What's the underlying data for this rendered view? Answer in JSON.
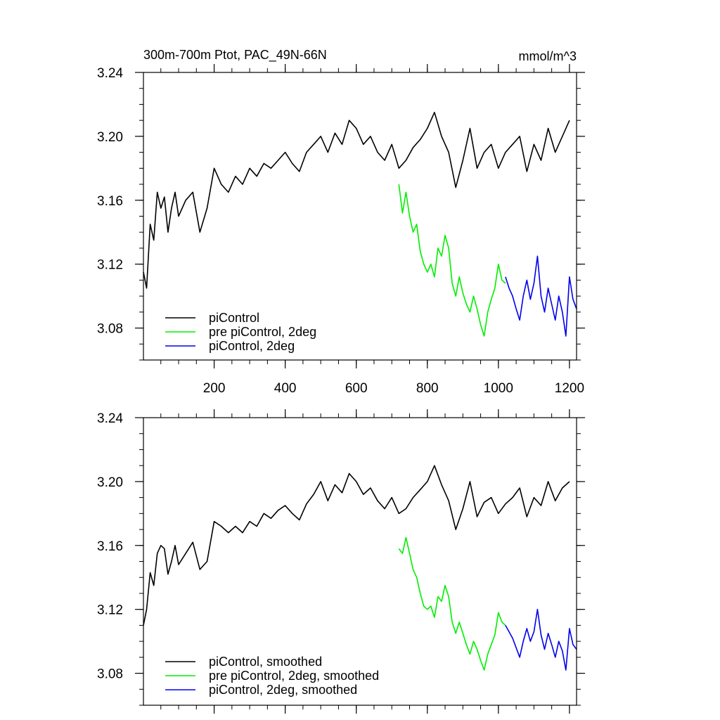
{
  "chart_data": [
    {
      "type": "line",
      "title": "300m-700m Ptot, PAC_49N-66N",
      "units_label": "mmol/m^3",
      "xlabel": "",
      "ylabel": "",
      "xlim": [
        1,
        1220
      ],
      "ylim": [
        3.06,
        3.24
      ],
      "xticks": [
        200,
        400,
        600,
        800,
        1000,
        1200
      ],
      "xtick_labels": [
        "200",
        "400",
        "600",
        "800",
        "1000",
        "1200"
      ],
      "yticks": [
        3.08,
        3.12,
        3.16,
        3.2,
        3.24
      ],
      "ytick_labels": [
        "3.08",
        "3.12",
        "3.16",
        "3.20",
        "3.24"
      ],
      "legend_position": "bottom-left",
      "grid": false,
      "series": [
        {
          "name": "piControl",
          "color": "#000000",
          "x": [
            1,
            10,
            20,
            30,
            40,
            50,
            60,
            70,
            80,
            90,
            100,
            120,
            140,
            160,
            180,
            200,
            220,
            240,
            260,
            280,
            300,
            320,
            340,
            360,
            380,
            400,
            420,
            440,
            460,
            480,
            500,
            520,
            540,
            560,
            580,
            600,
            620,
            640,
            660,
            680,
            700,
            720,
            740,
            760,
            780,
            800,
            820,
            840,
            860,
            880,
            900,
            920,
            940,
            960,
            980,
            1000,
            1020,
            1040,
            1060,
            1080,
            1100,
            1120,
            1140,
            1160,
            1180,
            1200
          ],
          "y": [
            3.115,
            3.105,
            3.145,
            3.135,
            3.165,
            3.155,
            3.162,
            3.14,
            3.155,
            3.165,
            3.15,
            3.16,
            3.165,
            3.14,
            3.155,
            3.18,
            3.17,
            3.165,
            3.175,
            3.17,
            3.18,
            3.175,
            3.183,
            3.18,
            3.185,
            3.19,
            3.183,
            3.178,
            3.19,
            3.195,
            3.2,
            3.19,
            3.202,
            3.195,
            3.21,
            3.205,
            3.195,
            3.2,
            3.19,
            3.185,
            3.195,
            3.18,
            3.185,
            3.193,
            3.198,
            3.205,
            3.215,
            3.2,
            3.19,
            3.168,
            3.185,
            3.205,
            3.18,
            3.19,
            3.195,
            3.18,
            3.19,
            3.195,
            3.2,
            3.178,
            3.195,
            3.185,
            3.205,
            3.19,
            3.2,
            3.21
          ]
        },
        {
          "name": "pre piControl, 2deg",
          "color": "#00ee00",
          "x": [
            720,
            730,
            740,
            750,
            760,
            770,
            780,
            790,
            800,
            810,
            820,
            830,
            840,
            850,
            860,
            870,
            880,
            890,
            900,
            910,
            920,
            930,
            940,
            950,
            960,
            970,
            980,
            990,
            1000,
            1010,
            1020
          ],
          "y": [
            3.17,
            3.152,
            3.165,
            3.15,
            3.14,
            3.145,
            3.128,
            3.12,
            3.115,
            3.12,
            3.112,
            3.13,
            3.125,
            3.138,
            3.13,
            3.108,
            3.1,
            3.112,
            3.102,
            3.095,
            3.09,
            3.1,
            3.092,
            3.082,
            3.075,
            3.09,
            3.098,
            3.105,
            3.12,
            3.11,
            3.108
          ]
        },
        {
          "name": "piControl, 2deg",
          "color": "#0000ee",
          "x": [
            1020,
            1030,
            1040,
            1050,
            1060,
            1070,
            1080,
            1090,
            1100,
            1110,
            1120,
            1130,
            1140,
            1150,
            1160,
            1170,
            1180,
            1190,
            1200,
            1210,
            1220
          ],
          "y": [
            3.112,
            3.105,
            3.1,
            3.092,
            3.085,
            3.1,
            3.11,
            3.098,
            3.108,
            3.125,
            3.1,
            3.09,
            3.105,
            3.095,
            3.085,
            3.1,
            3.09,
            3.075,
            3.112,
            3.098,
            3.092
          ]
        }
      ]
    },
    {
      "type": "line",
      "title": "",
      "xlabel": "",
      "ylabel": "",
      "xlim": [
        1,
        1220
      ],
      "ylim": [
        3.06,
        3.24
      ],
      "xticks": [
        200,
        400,
        600,
        800,
        1000,
        1200
      ],
      "xtick_labels": [],
      "yticks": [
        3.08,
        3.12,
        3.16,
        3.2,
        3.24
      ],
      "ytick_labels": [
        "3.08",
        "3.12",
        "3.16",
        "3.20",
        "3.24"
      ],
      "legend_position": "bottom-left",
      "grid": false,
      "series": [
        {
          "name": "piControl, smoothed",
          "color": "#000000",
          "x": [
            1,
            10,
            20,
            30,
            40,
            50,
            60,
            70,
            80,
            90,
            100,
            120,
            140,
            160,
            180,
            200,
            220,
            240,
            260,
            280,
            300,
            320,
            340,
            360,
            380,
            400,
            420,
            440,
            460,
            480,
            500,
            520,
            540,
            560,
            580,
            600,
            620,
            640,
            660,
            680,
            700,
            720,
            740,
            760,
            780,
            800,
            820,
            840,
            860,
            880,
            900,
            920,
            940,
            960,
            980,
            1000,
            1020,
            1040,
            1060,
            1080,
            1100,
            1120,
            1140,
            1160,
            1180,
            1200
          ],
          "y": [
            3.11,
            3.12,
            3.143,
            3.135,
            3.155,
            3.16,
            3.158,
            3.142,
            3.15,
            3.16,
            3.148,
            3.155,
            3.162,
            3.145,
            3.15,
            3.175,
            3.172,
            3.168,
            3.172,
            3.168,
            3.175,
            3.172,
            3.18,
            3.177,
            3.182,
            3.185,
            3.18,
            3.176,
            3.186,
            3.192,
            3.2,
            3.188,
            3.198,
            3.193,
            3.205,
            3.2,
            3.192,
            3.196,
            3.188,
            3.183,
            3.19,
            3.18,
            3.183,
            3.19,
            3.195,
            3.2,
            3.21,
            3.198,
            3.188,
            3.17,
            3.183,
            3.2,
            3.178,
            3.187,
            3.19,
            3.18,
            3.186,
            3.19,
            3.196,
            3.178,
            3.19,
            3.185,
            3.2,
            3.188,
            3.196,
            3.2
          ]
        },
        {
          "name": "pre piControl, 2deg, smoothed",
          "color": "#00ee00",
          "x": [
            720,
            730,
            740,
            750,
            760,
            770,
            780,
            790,
            800,
            810,
            820,
            830,
            840,
            850,
            860,
            870,
            880,
            890,
            900,
            910,
            920,
            930,
            940,
            950,
            960,
            970,
            980,
            990,
            1000,
            1010,
            1020
          ],
          "y": [
            3.158,
            3.155,
            3.165,
            3.155,
            3.145,
            3.14,
            3.13,
            3.122,
            3.12,
            3.122,
            3.115,
            3.128,
            3.125,
            3.135,
            3.128,
            3.112,
            3.105,
            3.112,
            3.105,
            3.098,
            3.092,
            3.1,
            3.095,
            3.088,
            3.082,
            3.092,
            3.098,
            3.104,
            3.118,
            3.112,
            3.11
          ]
        },
        {
          "name": "piControl, 2deg, smoothed",
          "color": "#0000ee",
          "x": [
            1020,
            1030,
            1040,
            1050,
            1060,
            1070,
            1080,
            1090,
            1100,
            1110,
            1120,
            1130,
            1140,
            1150,
            1160,
            1170,
            1180,
            1190,
            1200,
            1210,
            1220
          ],
          "y": [
            3.11,
            3.106,
            3.102,
            3.096,
            3.09,
            3.1,
            3.108,
            3.1,
            3.106,
            3.12,
            3.104,
            3.095,
            3.105,
            3.098,
            3.09,
            3.1,
            3.094,
            3.082,
            3.108,
            3.098,
            3.095
          ]
        }
      ]
    }
  ]
}
